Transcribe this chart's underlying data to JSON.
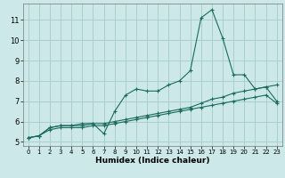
{
  "xlabel": "Humidex (Indice chaleur)",
  "x_values": [
    0,
    1,
    2,
    3,
    4,
    5,
    6,
    7,
    8,
    9,
    10,
    11,
    12,
    13,
    14,
    15,
    16,
    17,
    18,
    19,
    20,
    21,
    22,
    23
  ],
  "line1": [
    5.2,
    5.3,
    5.7,
    5.8,
    5.8,
    5.9,
    5.9,
    5.4,
    6.5,
    7.3,
    7.6,
    7.5,
    7.5,
    7.8,
    8.0,
    8.5,
    11.1,
    11.5,
    10.1,
    8.3,
    8.3,
    7.6,
    7.7,
    7.0
  ],
  "line2": [
    5.2,
    5.3,
    5.7,
    5.8,
    5.8,
    5.8,
    5.9,
    5.9,
    6.0,
    6.1,
    6.2,
    6.3,
    6.4,
    6.5,
    6.6,
    6.7,
    6.9,
    7.1,
    7.2,
    7.4,
    7.5,
    7.6,
    7.7,
    7.8
  ],
  "line3": [
    5.2,
    5.3,
    5.6,
    5.7,
    5.7,
    5.7,
    5.8,
    5.8,
    5.9,
    6.0,
    6.1,
    6.2,
    6.3,
    6.4,
    6.5,
    6.6,
    6.7,
    6.8,
    6.9,
    7.0,
    7.1,
    7.2,
    7.3,
    6.9
  ],
  "line_color": "#1a6b5e",
  "bg_color": "#cce8e8",
  "grid_color": "#aacece",
  "ylim_min": 4.8,
  "ylim_max": 11.8,
  "xlim_min": -0.5,
  "xlim_max": 23.5,
  "yticks": [
    5,
    6,
    7,
    8,
    9,
    10,
    11
  ],
  "xticks": [
    0,
    1,
    2,
    3,
    4,
    5,
    6,
    7,
    8,
    9,
    10,
    11,
    12,
    13,
    14,
    15,
    16,
    17,
    18,
    19,
    20,
    21,
    22,
    23
  ],
  "xlabel_fontsize": 6.5,
  "tick_fontsize_x": 5.0,
  "tick_fontsize_y": 6.0
}
